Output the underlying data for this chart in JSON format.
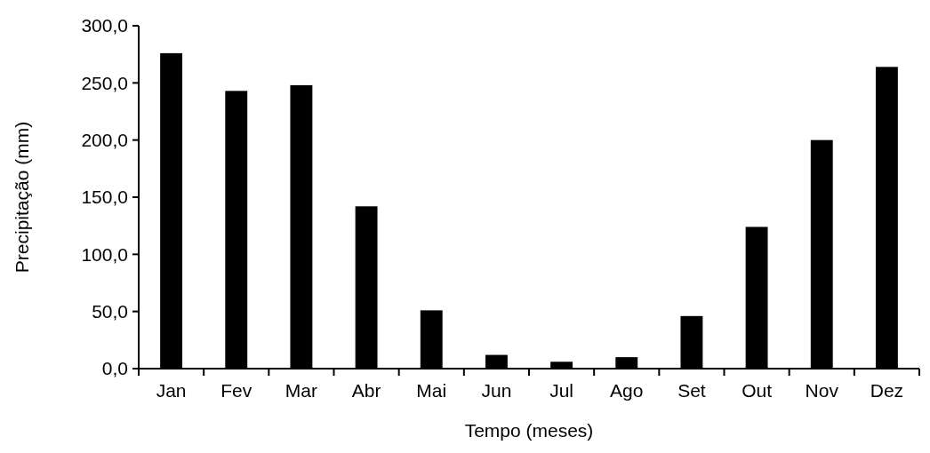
{
  "chart_data": {
    "type": "bar",
    "xlabel": "Tempo (meses)",
    "ylabel": "Precipitação (mm)",
    "categories": [
      "Jan",
      "Fev",
      "Mar",
      "Abr",
      "Mai",
      "Jun",
      "Jul",
      "Ago",
      "Set",
      "Out",
      "Nov",
      "Dez"
    ],
    "values": [
      276,
      243,
      248,
      142,
      51,
      12,
      6,
      10,
      46,
      124,
      200,
      264
    ],
    "color": "#000000",
    "ylim": [
      0,
      300
    ],
    "yticks": [
      {
        "value": 0,
        "label": "0,0"
      },
      {
        "value": 50,
        "label": "50,0"
      },
      {
        "value": 100,
        "label": "100,0"
      },
      {
        "value": 150,
        "label": "150,0"
      },
      {
        "value": 200,
        "label": "200,0"
      },
      {
        "value": 250,
        "label": "250,0"
      },
      {
        "value": 300,
        "label": "300,0"
      }
    ],
    "grid": false
  }
}
